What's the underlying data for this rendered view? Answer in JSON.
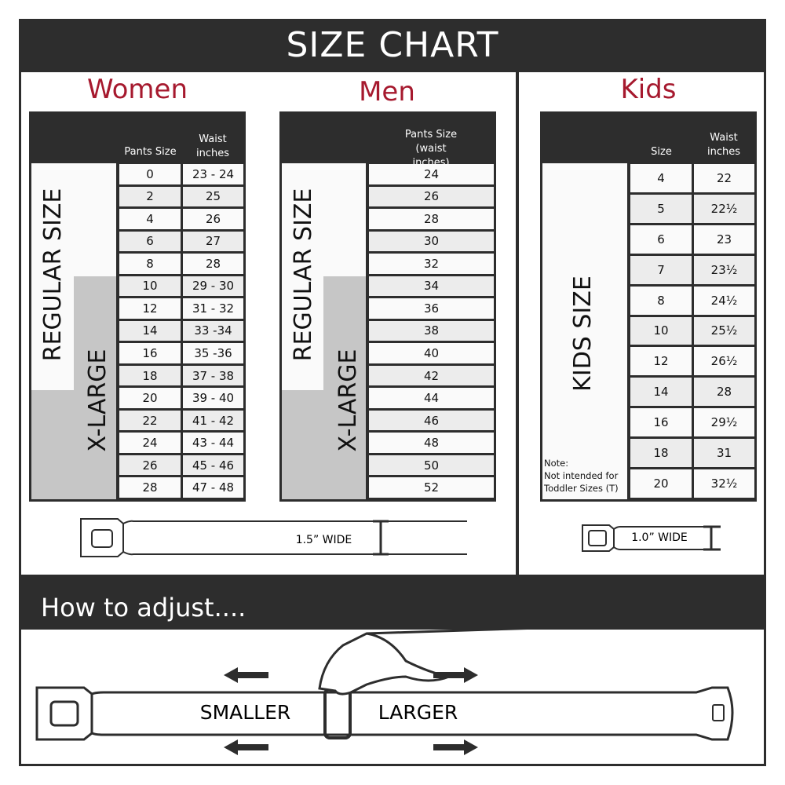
{
  "title": "SIZE CHART",
  "colors": {
    "dark": "#2d2d2d",
    "accent": "#a6192e",
    "gray": "#c6c6c6"
  },
  "women": {
    "title": "Women",
    "headers": [
      "Pants Size",
      "Waist inches"
    ],
    "regular_label": "REGULAR SIZE",
    "xlarge_label": "X-LARGE",
    "rows": [
      [
        "0",
        "23 - 24"
      ],
      [
        "2",
        "25"
      ],
      [
        "4",
        "26"
      ],
      [
        "6",
        "27"
      ],
      [
        "8",
        "28"
      ],
      [
        "10",
        "29 - 30"
      ],
      [
        "12",
        "31 - 32"
      ],
      [
        "14",
        "33 -34"
      ],
      [
        "16",
        "35 -36"
      ],
      [
        "18",
        "37 - 38"
      ],
      [
        "20",
        "39 - 40"
      ],
      [
        "22",
        "41 - 42"
      ],
      [
        "24",
        "43 - 44"
      ],
      [
        "26",
        "45 - 46"
      ],
      [
        "28",
        "47 - 48"
      ]
    ],
    "belt_width": "1.5” WIDE"
  },
  "men": {
    "title": "Men",
    "header": "Pants Size (waist inches)",
    "regular_label": "REGULAR SIZE",
    "xlarge_label": "X-LARGE",
    "rows": [
      "24",
      "26",
      "28",
      "30",
      "32",
      "34",
      "36",
      "38",
      "40",
      "42",
      "44",
      "46",
      "48",
      "50",
      "52"
    ]
  },
  "kids": {
    "title": "Kids",
    "headers": [
      "Size",
      "Waist inches"
    ],
    "size_label": "KIDS SIZE",
    "note_title": "Note:",
    "note_line1": "Not intended for",
    "note_line2": "Toddler Sizes (T)",
    "rows": [
      [
        "4",
        "22"
      ],
      [
        "5",
        "22½"
      ],
      [
        "6",
        "23"
      ],
      [
        "7",
        "23½"
      ],
      [
        "8",
        "24½"
      ],
      [
        "10",
        "25½"
      ],
      [
        "12",
        "26½"
      ],
      [
        "14",
        "28"
      ],
      [
        "16",
        "29½"
      ],
      [
        "18",
        "31"
      ],
      [
        "20",
        "32½"
      ]
    ],
    "belt_width": "1.0” WIDE"
  },
  "adjust": {
    "title": "How to adjust....",
    "smaller": "SMALLER",
    "larger": "LARGER"
  }
}
